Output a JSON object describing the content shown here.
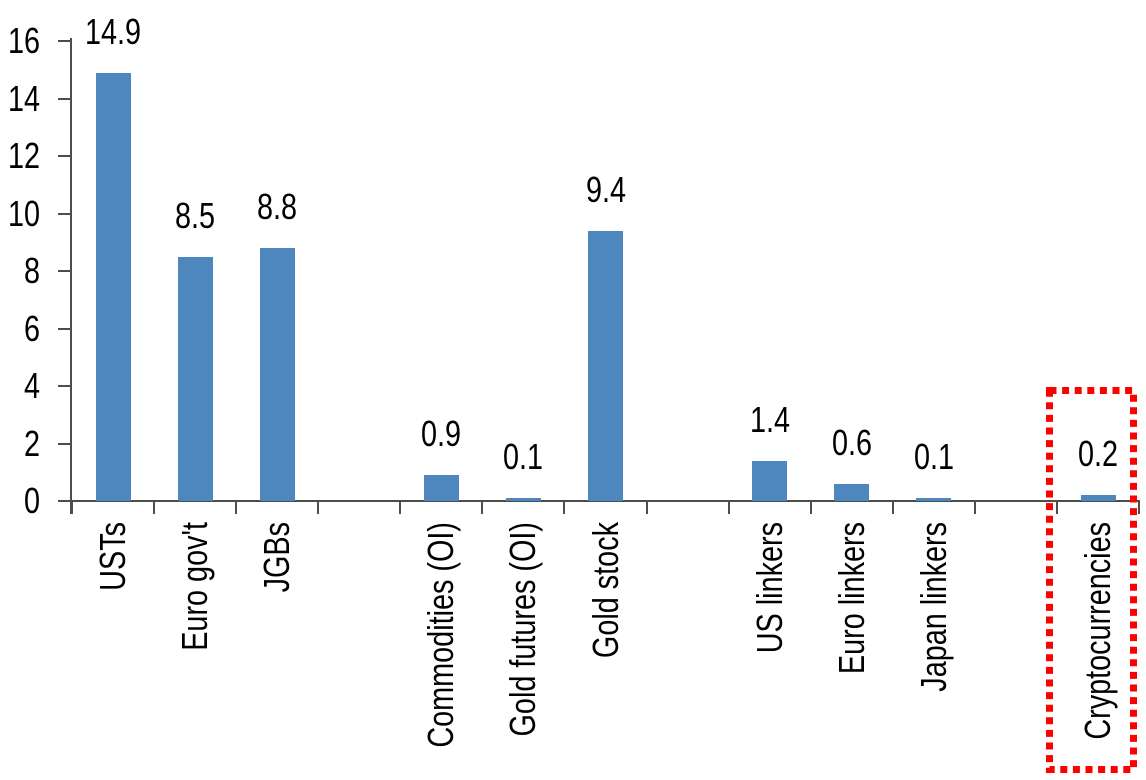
{
  "chart_data": {
    "type": "bar",
    "categories": [
      "USTs",
      "Euro gov't",
      "JGBs",
      "Commodities (OI)",
      "Gold futures (OI)",
      "Gold stock",
      "US linkers",
      "Euro linkers",
      "Japan linkers",
      "Cryptocurrencies"
    ],
    "values": [
      14.9,
      8.5,
      8.8,
      0.9,
      0.1,
      9.4,
      1.4,
      0.6,
      0.1,
      0.2
    ],
    "data_labels": [
      "14.9",
      "8.5",
      "8.8",
      "0.9",
      "0.1",
      "9.4",
      "1.4",
      "0.6",
      "0.1",
      "0.2"
    ],
    "slots": [
      0,
      1,
      2,
      4,
      5,
      6,
      8,
      9,
      10,
      12
    ],
    "total_slots": 13,
    "ylim": [
      0,
      16
    ],
    "yticks": [
      "0",
      "2",
      "4",
      "6",
      "8",
      "10",
      "12",
      "14",
      "16"
    ],
    "grid": false,
    "legend": "none",
    "data_label_position": "outside-end",
    "category_label_rotation": -90,
    "highlighted_category": "Cryptocurrencies",
    "highlight_style": "red-dotted-box",
    "colors": {
      "bar": "#4E86BE",
      "axis": "#4D4D4D",
      "text": "#000000",
      "highlight_box": "#FF0000",
      "background": "#FFFFFF"
    }
  }
}
